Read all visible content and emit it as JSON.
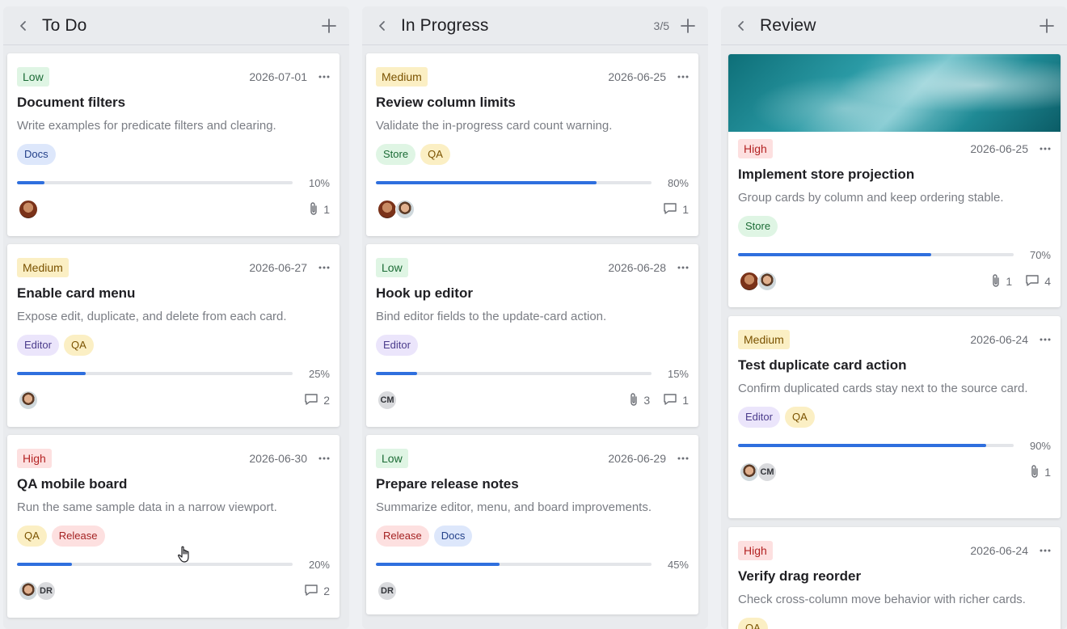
{
  "columns": [
    {
      "title": "To Do",
      "count": "",
      "cards": [
        {
          "priority": "Low",
          "date": "2026-07-01",
          "title": "Document filters",
          "desc": "Write examples for predicate filters and clearing.",
          "tags": [
            "Docs"
          ],
          "progress": 10,
          "progress_label": "10%",
          "avatars": [
            "photo1"
          ],
          "attachments": "1",
          "comments": ""
        },
        {
          "priority": "Medium",
          "date": "2026-06-27",
          "title": "Enable card menu",
          "desc": "Expose edit, duplicate, and delete from each card.",
          "tags": [
            "Editor",
            "QA"
          ],
          "progress": 25,
          "progress_label": "25%",
          "avatars": [
            "photo2"
          ],
          "attachments": "",
          "comments": "2"
        },
        {
          "priority": "High",
          "date": "2026-06-30",
          "title": "QA mobile board",
          "desc": "Run the same sample data in a narrow viewport.",
          "tags": [
            "QA",
            "Release"
          ],
          "progress": 20,
          "progress_label": "20%",
          "avatars": [
            "photo2",
            "DR"
          ],
          "attachments": "",
          "comments": "2"
        }
      ]
    },
    {
      "title": "In Progress",
      "count": "3/5",
      "cards": [
        {
          "priority": "Medium",
          "date": "2026-06-25",
          "title": "Review column limits",
          "desc": "Validate the in-progress card count warning.",
          "tags": [
            "Store",
            "QA"
          ],
          "progress": 80,
          "progress_label": "80%",
          "avatars": [
            "photo1",
            "photo2"
          ],
          "attachments": "",
          "comments": "1"
        },
        {
          "priority": "Low",
          "date": "2026-06-28",
          "title": "Hook up editor",
          "desc": "Bind editor fields to the update-card action.",
          "tags": [
            "Editor"
          ],
          "progress": 15,
          "progress_label": "15%",
          "avatars": [
            "CM"
          ],
          "attachments": "3",
          "comments": "1"
        },
        {
          "priority": "Low",
          "date": "2026-06-29",
          "title": "Prepare release notes",
          "desc": "Summarize editor, menu, and board improvements.",
          "tags": [
            "Release",
            "Docs"
          ],
          "progress": 45,
          "progress_label": "45%",
          "avatars": [
            "DR"
          ],
          "attachments": "",
          "comments": ""
        }
      ]
    },
    {
      "title": "Review",
      "count": "",
      "cards": [
        {
          "cover": true,
          "priority": "High",
          "date": "2026-06-25",
          "title": "Implement store projection",
          "desc": "Group cards by column and keep ordering stable.",
          "tags": [
            "Store"
          ],
          "progress": 70,
          "progress_label": "70%",
          "avatars": [
            "photo1",
            "photo2"
          ],
          "attachments": "1",
          "comments": "4"
        },
        {
          "priority": "Medium",
          "date": "2026-06-24",
          "title": "Test duplicate card action",
          "desc": "Confirm duplicated cards stay next to the source card.",
          "tags": [
            "Editor",
            "QA"
          ],
          "progress": 90,
          "progress_label": "90%",
          "avatars": [
            "photo2",
            "CM"
          ],
          "attachments": "1",
          "comments": ""
        },
        {
          "priority": "High",
          "date": "2026-06-24",
          "title": "Verify drag reorder",
          "desc": "Check cross-column move behavior with richer cards.",
          "tags": [
            "QA"
          ],
          "progress": 0,
          "progress_label": "",
          "avatars": [],
          "attachments": "",
          "comments": ""
        }
      ]
    }
  ],
  "colors": {
    "accent": "#2f6fde",
    "background": "#eef0f3"
  },
  "icons": {
    "back": "chevron-left-icon",
    "add": "plus-icon",
    "menu": "more-horizontal-icon",
    "attachment": "paperclip-icon",
    "comment": "comment-icon",
    "cursor": "hand-pointer-icon"
  }
}
